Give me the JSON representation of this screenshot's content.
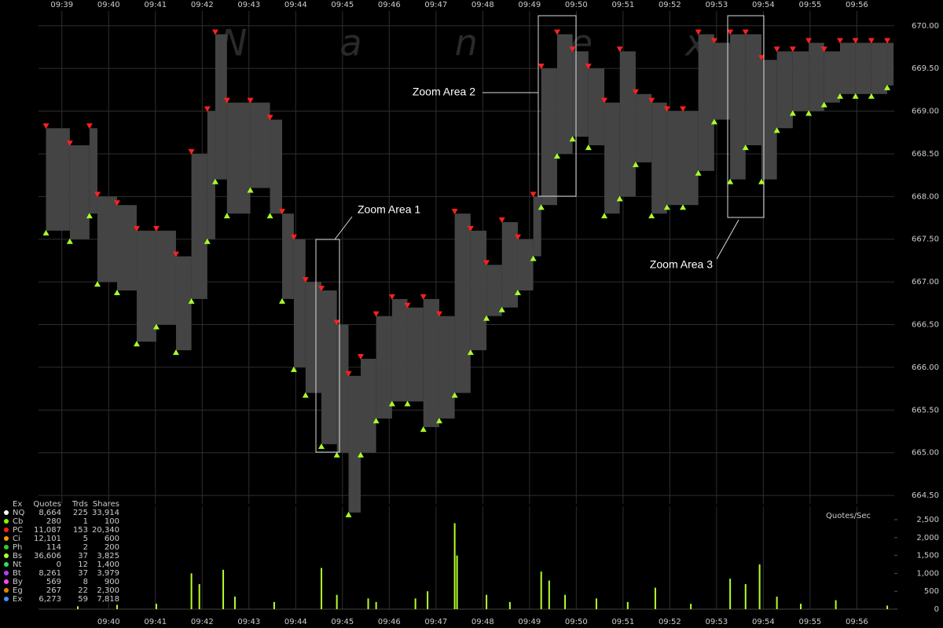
{
  "chart_data": [
    {
      "type": "range",
      "watermark": "Nanex",
      "xlim": [
        578.5,
        596.8
      ],
      "xticks": [
        {
          "value": 579,
          "label": "09:39"
        },
        {
          "value": 580,
          "label": "09:40"
        },
        {
          "value": 581,
          "label": "09:41"
        },
        {
          "value": 582,
          "label": "09:42"
        },
        {
          "value": 583,
          "label": "09:43"
        },
        {
          "value": 584,
          "label": "09:44"
        },
        {
          "value": 585,
          "label": "09:45"
        },
        {
          "value": 586,
          "label": "09:46"
        },
        {
          "value": 587,
          "label": "09:47"
        },
        {
          "value": 588,
          "label": "09:48"
        },
        {
          "value": 589,
          "label": "09:49"
        },
        {
          "value": 590,
          "label": "09:50"
        },
        {
          "value": 591,
          "label": "09:51"
        },
        {
          "value": 592,
          "label": "09:52"
        },
        {
          "value": 593,
          "label": "09:53"
        },
        {
          "value": 594,
          "label": "09:54"
        },
        {
          "value": 595,
          "label": "09:55"
        },
        {
          "value": 596,
          "label": "09:56"
        }
      ],
      "ylim": [
        664.4,
        670.2
      ],
      "yticks": [
        {
          "value": 664.5,
          "label": "664.50"
        },
        {
          "value": 665,
          "label": "665.00"
        },
        {
          "value": 665.5,
          "label": "665.50"
        },
        {
          "value": 666,
          "label": "666.00"
        },
        {
          "value": 666.5,
          "label": "666.50"
        },
        {
          "value": 667,
          "label": "667.00"
        },
        {
          "value": 667.5,
          "label": "667.50"
        },
        {
          "value": 668,
          "label": "668.00"
        },
        {
          "value": 668.5,
          "label": "668.50"
        },
        {
          "value": 669,
          "label": "669.00"
        },
        {
          "value": 669.5,
          "label": "669.50"
        },
        {
          "value": 670,
          "label": "670.00"
        }
      ],
      "grid": true,
      "color": "#444444",
      "high_color": "#ff2020",
      "low_color": "#a8ff2a",
      "x": [
        578.66,
        579.17,
        579.59,
        579.76,
        580.18,
        580.6,
        581.02,
        581.44,
        581.77,
        582.11,
        582.28,
        582.53,
        583.03,
        583.45,
        583.71,
        583.96,
        584.21,
        584.55,
        584.88,
        585.13,
        585.39,
        585.72,
        586.06,
        586.39,
        586.73,
        587.07,
        587.4,
        587.74,
        588.08,
        588.41,
        588.75,
        589.08,
        589.25,
        589.59,
        589.92,
        590.26,
        590.6,
        590.93,
        591.27,
        591.61,
        591.94,
        592.28,
        592.61,
        592.95,
        593.29,
        593.62,
        593.96,
        594.29,
        594.63,
        594.97,
        595.3,
        595.64,
        595.97,
        596.31,
        596.65
      ],
      "high": [
        668.8,
        668.6,
        668.8,
        668.0,
        667.9,
        667.6,
        667.6,
        667.3,
        668.5,
        669.0,
        669.9,
        669.1,
        669.1,
        668.9,
        667.8,
        667.5,
        667.0,
        666.9,
        666.5,
        665.9,
        666.1,
        666.6,
        666.8,
        666.7,
        666.8,
        666.6,
        667.8,
        667.6,
        667.2,
        667.7,
        667.5,
        668.0,
        669.5,
        669.9,
        669.7,
        669.5,
        669.1,
        669.7,
        669.2,
        669.1,
        669.0,
        669.0,
        669.9,
        669.8,
        669.9,
        669.9,
        669.6,
        669.7,
        669.7,
        669.8,
        669.7,
        669.8,
        669.8,
        669.8,
        669.8
      ],
      "low": [
        667.6,
        667.5,
        667.8,
        667.0,
        666.9,
        666.3,
        666.5,
        666.2,
        666.8,
        667.5,
        668.2,
        667.8,
        668.1,
        667.8,
        666.8,
        666.0,
        665.7,
        665.1,
        665.0,
        664.3,
        665.0,
        665.4,
        665.6,
        665.6,
        665.3,
        665.4,
        665.7,
        666.2,
        666.6,
        666.7,
        666.9,
        667.3,
        667.9,
        668.5,
        668.7,
        668.6,
        667.8,
        668.0,
        668.4,
        667.8,
        667.9,
        667.9,
        668.3,
        668.9,
        668.2,
        668.6,
        668.2,
        668.8,
        669.0,
        669.0,
        669.1,
        669.2,
        669.2,
        669.2,
        669.3
      ],
      "annotations": [
        "Zoom Area 1",
        "Zoom Area 2",
        "Zoom Area 3"
      ]
    },
    {
      "type": "bar",
      "ylabel": "Quotes/Sec",
      "color": "#b4ff2a",
      "xlim": [
        578.5,
        596.8
      ],
      "xticks": [
        {
          "value": 580,
          "label": "09:40"
        },
        {
          "value": 581,
          "label": "09:41"
        },
        {
          "value": 582,
          "label": "09:42"
        },
        {
          "value": 583,
          "label": "09:43"
        },
        {
          "value": 584,
          "label": "09:44"
        },
        {
          "value": 585,
          "label": "09:45"
        },
        {
          "value": 586,
          "label": "09:46"
        },
        {
          "value": 587,
          "label": "09:47"
        },
        {
          "value": 588,
          "label": "09:48"
        },
        {
          "value": 589,
          "label": "09:49"
        },
        {
          "value": 590,
          "label": "09:50"
        },
        {
          "value": 591,
          "label": "09:51"
        },
        {
          "value": 592,
          "label": "09:52"
        },
        {
          "value": 593,
          "label": "09:53"
        },
        {
          "value": 594,
          "label": "09:54"
        },
        {
          "value": 595,
          "label": "09:55"
        },
        {
          "value": 596,
          "label": "09:56"
        }
      ],
      "ylim": [
        0,
        2500
      ],
      "yticks": [
        0,
        500,
        {
          "value": 1000,
          "label": "1,000"
        },
        {
          "value": 1500,
          "label": "1,500"
        },
        {
          "value": 2000,
          "label": "2,000"
        },
        {
          "value": 2500,
          "label": "2,500"
        }
      ],
      "x": [
        579.34,
        580.18,
        581.02,
        581.77,
        581.94,
        582.45,
        582.7,
        583.54,
        584.55,
        584.88,
        585.55,
        585.72,
        586.56,
        586.82,
        587.4,
        587.45,
        588.08,
        588.58,
        589.25,
        589.42,
        589.76,
        590.43,
        591.1,
        591.69,
        592.45,
        593.29,
        593.62,
        593.92,
        594.29,
        594.8,
        595.55,
        596.65
      ],
      "values": [
        80,
        120,
        150,
        1000,
        700,
        1100,
        350,
        200,
        1150,
        400,
        300,
        200,
        300,
        500,
        2400,
        1500,
        400,
        200,
        1050,
        800,
        400,
        300,
        200,
        600,
        150,
        850,
        700,
        1250,
        350,
        150,
        250,
        100
      ]
    }
  ],
  "legend_table": {
    "header": [
      "Ex",
      "Quotes",
      "Trds",
      "Shares"
    ],
    "rows": [
      [
        "NQ",
        "8,664",
        "225",
        "33,914"
      ],
      [
        "Cb",
        "280",
        "1",
        "100"
      ],
      [
        "PC",
        "11,087",
        "153",
        "20,340"
      ],
      [
        "Ci",
        "12,101",
        "5",
        "600"
      ],
      [
        "Ph",
        "114",
        "2",
        "200"
      ],
      [
        "Bs",
        "36,606",
        "37",
        "3,825"
      ],
      [
        "Nt",
        "0",
        "12",
        "1,400"
      ],
      [
        "Bt",
        "8,261",
        "37",
        "3,979"
      ],
      [
        "By",
        "569",
        "8",
        "900"
      ],
      [
        "Eg",
        "267",
        "22",
        "2,300"
      ],
      [
        "Ex",
        "6,273",
        "59",
        "7,818"
      ]
    ],
    "colors": [
      "#ffffff",
      "#7fff00",
      "#ff2020",
      "#ff9900",
      "#33cc33",
      "#b4ff2a",
      "#33dd66",
      "#aa44ff",
      "#ff44ff",
      "#dd8800",
      "#3399ff"
    ]
  }
}
